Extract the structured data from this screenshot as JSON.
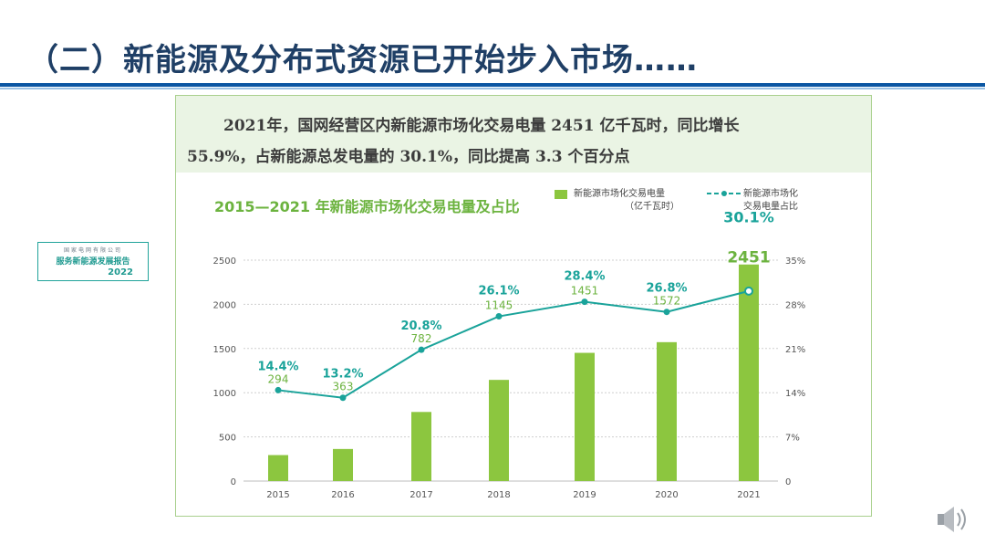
{
  "slide": {
    "title": "（二）新能源及分布式资源已开始步入市场……"
  },
  "report_badge": {
    "org": "国家电网有限公司",
    "name": "服务新能源发展报告",
    "year": "2022"
  },
  "intro": {
    "line1": "2021年，国网经营区内新能源市场化交易电量 2451 亿千瓦时，同比增长",
    "line2": "55.9%，占新能源总发电量的 30.1%，同比提高 3.3 个百分点"
  },
  "colors": {
    "bar": "#8cc63f",
    "line": "#1aa39a",
    "bar_label": "#6cb33f",
    "title_dark": "#1f3f66",
    "rule": "#0a56a3"
  },
  "chart_data": {
    "type": "bar",
    "title": "2015—2021 年新能源市场化交易电量及占比",
    "categories": [
      "2015",
      "2016",
      "2017",
      "2018",
      "2019",
      "2020",
      "2021"
    ],
    "series": [
      {
        "name": "新能源市场化交易电量（亿千瓦时）",
        "type": "bar",
        "axis": "left",
        "values": [
          294,
          363,
          782,
          1145,
          1451,
          1572,
          2451
        ],
        "labels": [
          "294",
          "363",
          "782",
          "1145",
          "1451",
          "1572",
          "2451"
        ]
      },
      {
        "name": "新能源市场化交易电量占比",
        "type": "line",
        "axis": "right",
        "values": [
          14.4,
          13.2,
          20.8,
          26.1,
          28.4,
          26.8,
          30.1
        ],
        "labels": [
          "14.4%",
          "13.2%",
          "20.8%",
          "26.1%",
          "28.4%",
          "26.8%",
          "30.1%"
        ]
      }
    ],
    "legend": {
      "bar_line1": "新能源市场化交易电量",
      "bar_line2": "（亿千瓦时）",
      "line_line1": "新能源市场化",
      "line_line2": "交易电量占比",
      "placement": "top-right"
    },
    "y_left": {
      "range": [
        0,
        2500
      ],
      "ticks": [
        "0",
        "500",
        "1000",
        "1500",
        "2000",
        "2500"
      ]
    },
    "y_right": {
      "range": [
        0,
        35
      ],
      "ticks": [
        "0",
        "7%",
        "14%",
        "21%",
        "28%",
        "35%"
      ]
    },
    "grid": true
  }
}
